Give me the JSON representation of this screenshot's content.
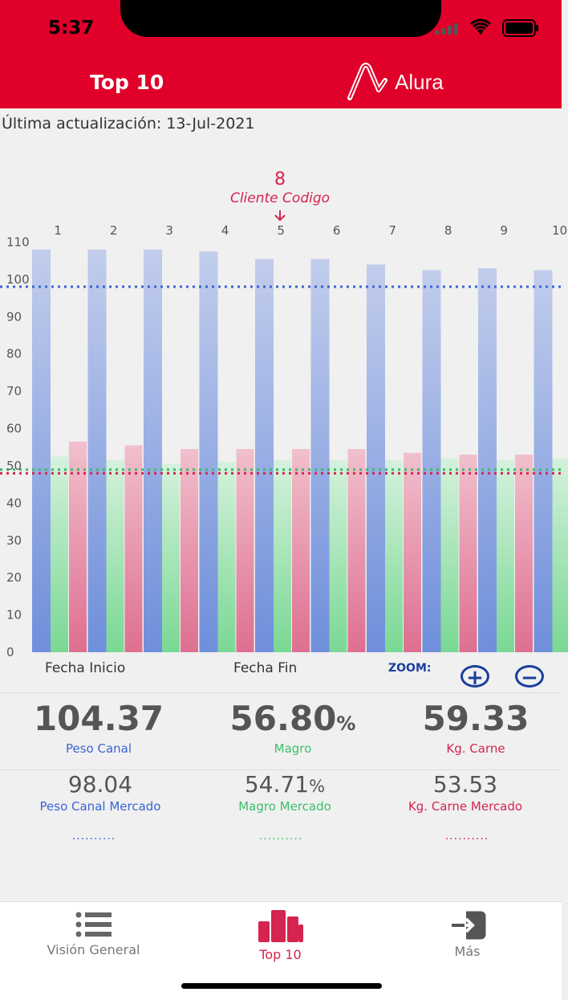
{
  "status": {
    "time": "5:37"
  },
  "header": {
    "title": "Top 10",
    "brand": "Alura"
  },
  "updated": {
    "label": "Última actualización:",
    "date": "13-Jul-2021"
  },
  "marker": {
    "value": "8",
    "label": "Cliente Codigo"
  },
  "chart_data": {
    "type": "bar",
    "categories": [
      "1",
      "2",
      "3",
      "4",
      "5",
      "6",
      "7",
      "8",
      "9",
      "10"
    ],
    "series": [
      {
        "values": [
          108,
          108,
          108,
          107.5,
          105.5,
          105.5,
          104,
          102.5,
          103,
          102.5
        ],
        "color": "#8aa3e0"
      },
      {
        "values": [
          52.5,
          51.5,
          50.5,
          51,
          51.5,
          51.5,
          51.5,
          52,
          51.5,
          52
        ],
        "color": "#7fd89a"
      },
      {
        "values": [
          56.5,
          55.5,
          54.5,
          54.5,
          54.5,
          54.5,
          53.5,
          53,
          53,
          null
        ],
        "color": "#e07896"
      }
    ],
    "reference_lines": [
      {
        "value": 98.04,
        "color": "#3b64d6"
      },
      {
        "value": 49,
        "color": "#3cbf6a"
      },
      {
        "value": 48,
        "color": "#d4244f"
      }
    ],
    "ylim": [
      0,
      110
    ],
    "yticks": [
      "0",
      "10",
      "20",
      "30",
      "40",
      "50",
      "60",
      "70",
      "80",
      "90",
      "100",
      "110"
    ],
    "x_footer_left": "Fecha Inicio",
    "x_footer_right": "Fecha Fin",
    "grid": false
  },
  "zoom": {
    "label": "ZOOM:",
    "plus": "+",
    "minus": "−"
  },
  "stats": {
    "peso_canal": {
      "value": "104.37",
      "label": "Peso Canal",
      "color": "#3b64d6"
    },
    "magro": {
      "value": "56.80",
      "unit": "%",
      "label": "Magro",
      "color": "#3cbf6a"
    },
    "kg_carne": {
      "value": "59.33",
      "label": "Kg. Carne",
      "color": "#d4244f"
    },
    "peso_canal_mercado": {
      "value": "98.04",
      "label": "Peso Canal Mercado"
    },
    "magro_mercado": {
      "value": "54.71",
      "unit": "%",
      "label": "Magro Mercado"
    },
    "kg_carne_mercado": {
      "value": "53.53",
      "label": "Kg. Carne Mercado"
    },
    "dots": ".........."
  },
  "tabs": [
    {
      "label": "Visión General",
      "color": "#777777"
    },
    {
      "label": "Top 10",
      "color": "#d4244f"
    },
    {
      "label": "Más",
      "color": "#777777"
    }
  ]
}
